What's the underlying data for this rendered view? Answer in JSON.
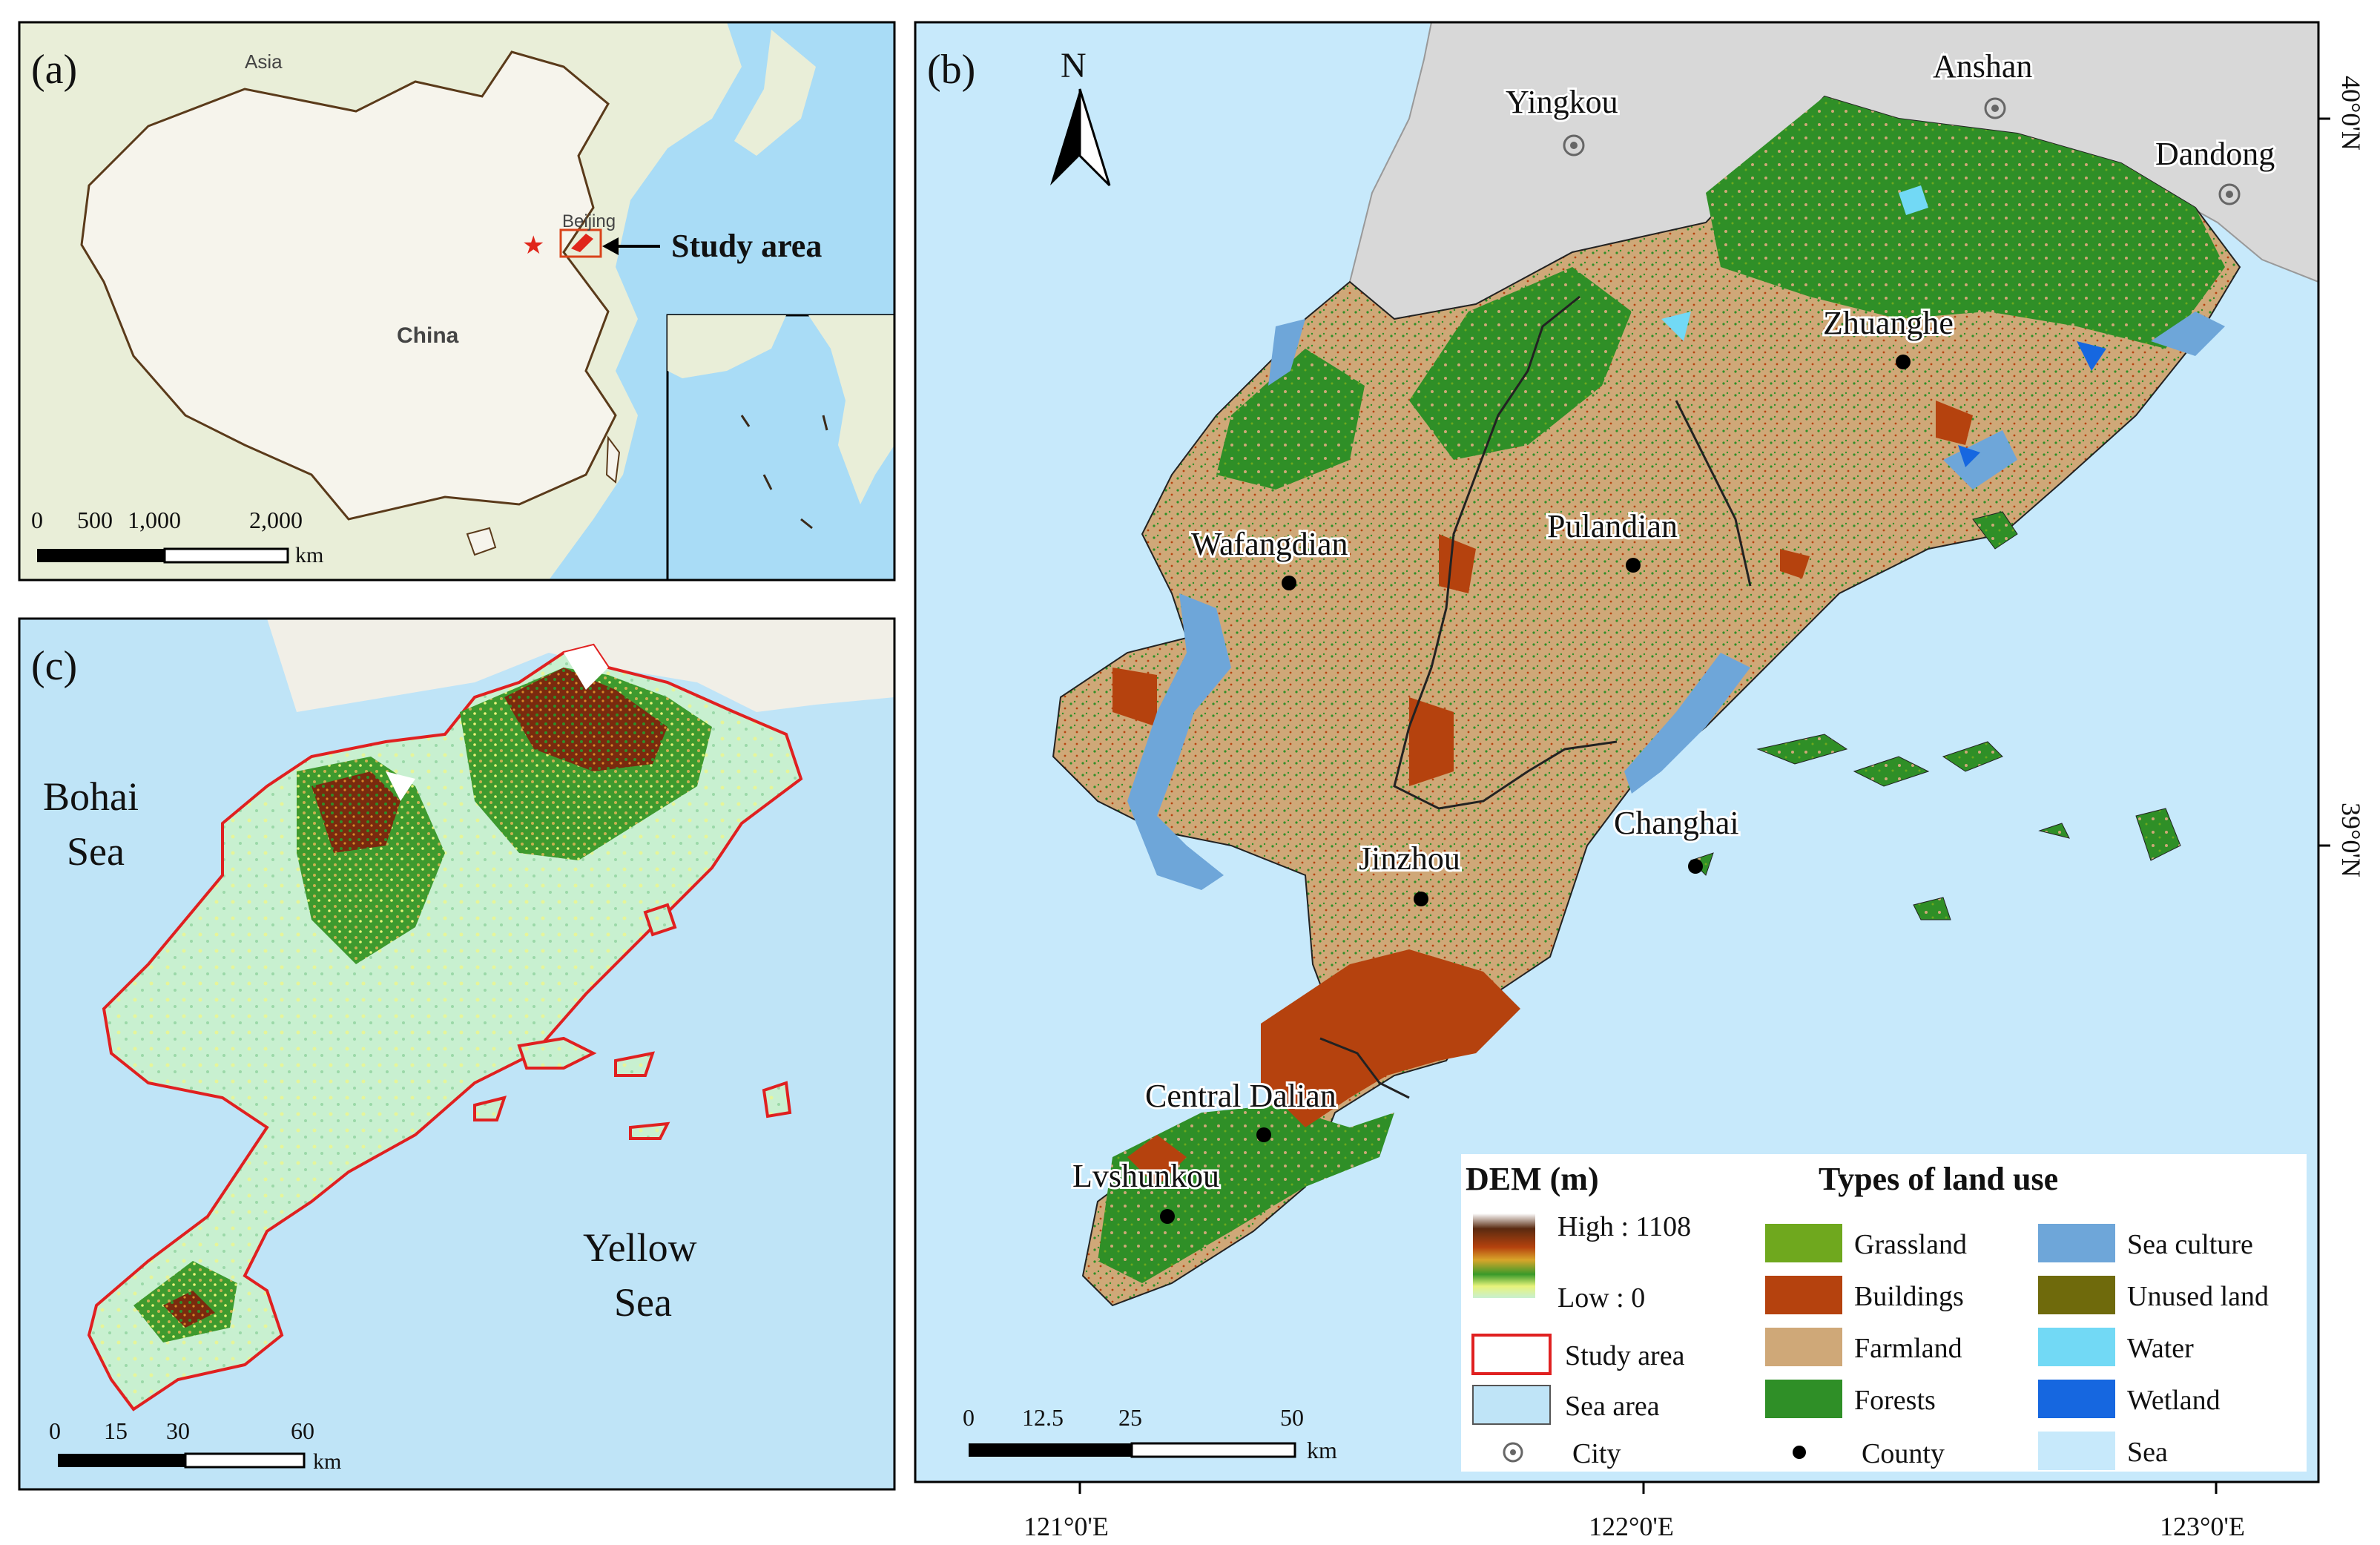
{
  "panel_a": {
    "label": "(a)",
    "asia": "Asia",
    "china": "China",
    "beijing": "Beijing",
    "study_area": "Study area",
    "scale": {
      "ticks": [
        "0",
        "500",
        "1,000",
        "2,000"
      ],
      "unit": "km"
    }
  },
  "panel_b": {
    "label": "(b)",
    "north": "N",
    "cities": [
      {
        "name": "Yingkou",
        "type": "city"
      },
      {
        "name": "Anshan",
        "type": "city"
      },
      {
        "name": "Dandong",
        "type": "city"
      },
      {
        "name": "Zhuanghe",
        "type": "county"
      },
      {
        "name": "Wafangdian",
        "type": "county"
      },
      {
        "name": "Pulandian",
        "type": "county"
      },
      {
        "name": "Jinzhou",
        "type": "county"
      },
      {
        "name": "Changhai",
        "type": "county"
      },
      {
        "name": "Central Dalian",
        "type": "county"
      },
      {
        "name": "Lvshunkou",
        "type": "county"
      }
    ],
    "lon_ticks": [
      "121°0'E",
      "122°0'E",
      "123°0'E"
    ],
    "lat_ticks": [
      "40°0'N",
      "39°0'N"
    ],
    "scale": {
      "ticks": [
        "0",
        "12.5",
        "25",
        "50"
      ],
      "unit": "km"
    },
    "legend": {
      "dem_title": "DEM (m)",
      "dem_high": "High : 1108",
      "dem_low": "Low : 0",
      "study_area": "Study area",
      "sea_area": "Sea area",
      "city": "City",
      "county": "County",
      "landuse_title": "Types of land use",
      "classes": [
        {
          "name": "Grassland",
          "color": "#6fa81e"
        },
        {
          "name": "Buildings",
          "color": "#b5420e"
        },
        {
          "name": "Farmland",
          "color": "#cfa878"
        },
        {
          "name": "Forests",
          "color": "#2f8f27"
        },
        {
          "name": "Sea culture",
          "color": "#6ea6d9"
        },
        {
          "name": "Unused land",
          "color": "#6f6a0c"
        },
        {
          "name": "Water",
          "color": "#72d9f5"
        },
        {
          "name": "Wetland",
          "color": "#1667e0"
        },
        {
          "name": "Sea",
          "color": "#c7e9fb"
        }
      ]
    }
  },
  "panel_c": {
    "label": "(c)",
    "bohai": [
      "Bohai",
      "Sea"
    ],
    "yellow": [
      "Yellow",
      "Sea"
    ],
    "scale": {
      "ticks": [
        "0",
        "15",
        "30",
        "60"
      ],
      "unit": "km"
    }
  }
}
